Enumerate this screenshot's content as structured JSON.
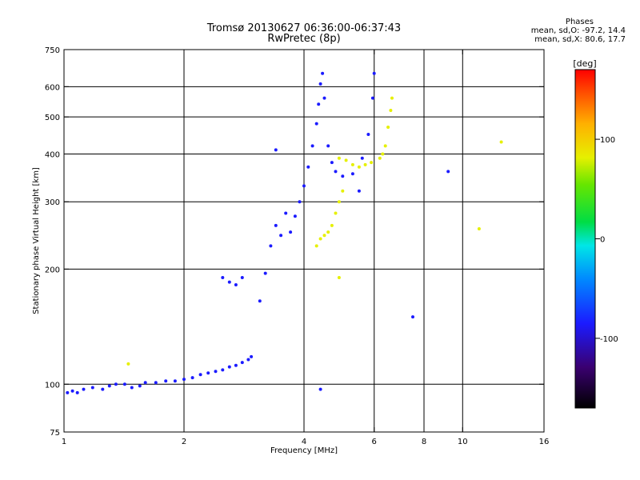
{
  "header": {
    "title_line1": "Tromsø 20130627 06:36:00-06:37:43",
    "title_line2": "RwPretec (8p)"
  },
  "phase_info": {
    "title": "Phases",
    "line_o": "mean, sd,O: -97.2, 14.4",
    "line_x": "mean, sd,X:  80.6, 17.7"
  },
  "colorbar": {
    "unit_label": "[deg]",
    "min": -170,
    "max": 170,
    "ticks": [
      {
        "value": 100,
        "label": "100"
      },
      {
        "value": 0,
        "label": "0"
      },
      {
        "value": -100,
        "label": "-100"
      }
    ]
  },
  "chart_data": {
    "type": "scatter",
    "title": "Tromsø 20130627 06:36:00-06:37:43",
    "subtitle": "RwPretec (8p)",
    "xlabel": "Frequency [MHz]",
    "ylabel": "Stationary phase Virtual Height [km]",
    "x_scale": "log",
    "y_scale": "log",
    "xlim": [
      1,
      16
    ],
    "ylim": [
      75,
      750
    ],
    "x_ticks": [
      {
        "value": 1,
        "label": "1"
      },
      {
        "value": 2,
        "label": "2"
      },
      {
        "value": 4,
        "label": "4"
      },
      {
        "value": 6,
        "label": "6"
      },
      {
        "value": 8,
        "label": "8"
      },
      {
        "value": 10,
        "label": "10"
      },
      {
        "value": 16,
        "label": "16"
      }
    ],
    "y_ticks": [
      {
        "value": 75,
        "label": "75"
      },
      {
        "value": 100,
        "label": "100"
      },
      {
        "value": 200,
        "label": "200"
      },
      {
        "value": 300,
        "label": "300"
      },
      {
        "value": 400,
        "label": "400"
      },
      {
        "value": 500,
        "label": "500"
      },
      {
        "value": 600,
        "label": "600"
      },
      {
        "value": 750,
        "label": "750"
      }
    ],
    "x_gridlines": [
      2,
      4,
      6,
      8,
      10
    ],
    "y_gridlines": [
      100,
      200,
      300,
      400,
      500,
      600
    ],
    "color_encoding": "phase [deg]",
    "series": [
      {
        "name": "O-mode",
        "approx_phase_deg": -100,
        "points": [
          [
            1.02,
            95
          ],
          [
            1.05,
            96
          ],
          [
            1.08,
            95
          ],
          [
            1.12,
            97
          ],
          [
            1.18,
            98
          ],
          [
            1.25,
            97
          ],
          [
            1.3,
            99
          ],
          [
            1.35,
            100
          ],
          [
            1.42,
            100
          ],
          [
            1.48,
            98
          ],
          [
            1.55,
            99
          ],
          [
            1.6,
            101
          ],
          [
            1.7,
            101
          ],
          [
            1.8,
            102
          ],
          [
            1.9,
            102
          ],
          [
            2.0,
            103
          ],
          [
            2.1,
            104
          ],
          [
            2.2,
            106
          ],
          [
            2.3,
            107
          ],
          [
            2.4,
            108
          ],
          [
            2.5,
            109
          ],
          [
            2.6,
            111
          ],
          [
            2.7,
            112
          ],
          [
            2.8,
            114
          ],
          [
            2.9,
            116
          ],
          [
            2.95,
            118
          ],
          [
            2.5,
            190
          ],
          [
            2.6,
            185
          ],
          [
            2.7,
            182
          ],
          [
            2.8,
            190
          ],
          [
            3.1,
            165
          ],
          [
            3.2,
            195
          ],
          [
            3.3,
            230
          ],
          [
            3.4,
            260
          ],
          [
            3.5,
            245
          ],
          [
            3.6,
            280
          ],
          [
            3.7,
            250
          ],
          [
            3.8,
            275
          ],
          [
            3.9,
            300
          ],
          [
            4.0,
            330
          ],
          [
            4.1,
            370
          ],
          [
            4.2,
            420
          ],
          [
            4.3,
            480
          ],
          [
            4.35,
            540
          ],
          [
            4.4,
            610
          ],
          [
            4.45,
            650
          ],
          [
            4.5,
            560
          ],
          [
            4.6,
            420
          ],
          [
            4.7,
            380
          ],
          [
            4.8,
            360
          ],
          [
            5.0,
            350
          ],
          [
            5.3,
            355
          ],
          [
            5.6,
            390
          ],
          [
            5.8,
            450
          ],
          [
            5.95,
            560
          ],
          [
            6.0,
            650
          ],
          [
            3.4,
            410
          ],
          [
            5.5,
            320
          ],
          [
            7.5,
            150
          ],
          [
            9.2,
            360
          ],
          [
            4.4,
            97
          ]
        ]
      },
      {
        "name": "X-mode",
        "approx_phase_deg": 80,
        "points": [
          [
            4.3,
            230
          ],
          [
            4.4,
            240
          ],
          [
            4.5,
            245
          ],
          [
            4.6,
            250
          ],
          [
            4.7,
            260
          ],
          [
            4.8,
            280
          ],
          [
            4.9,
            300
          ],
          [
            5.0,
            320
          ],
          [
            4.9,
            390
          ],
          [
            5.1,
            385
          ],
          [
            5.3,
            375
          ],
          [
            5.5,
            370
          ],
          [
            5.7,
            375
          ],
          [
            5.9,
            380
          ],
          [
            6.2,
            390
          ],
          [
            6.4,
            420
          ],
          [
            6.5,
            470
          ],
          [
            6.6,
            520
          ],
          [
            6.65,
            560
          ],
          [
            6.3,
            400
          ],
          [
            12.5,
            430
          ],
          [
            11,
            255
          ],
          [
            4.9,
            190
          ],
          [
            1.45,
            113
          ]
        ]
      }
    ]
  }
}
